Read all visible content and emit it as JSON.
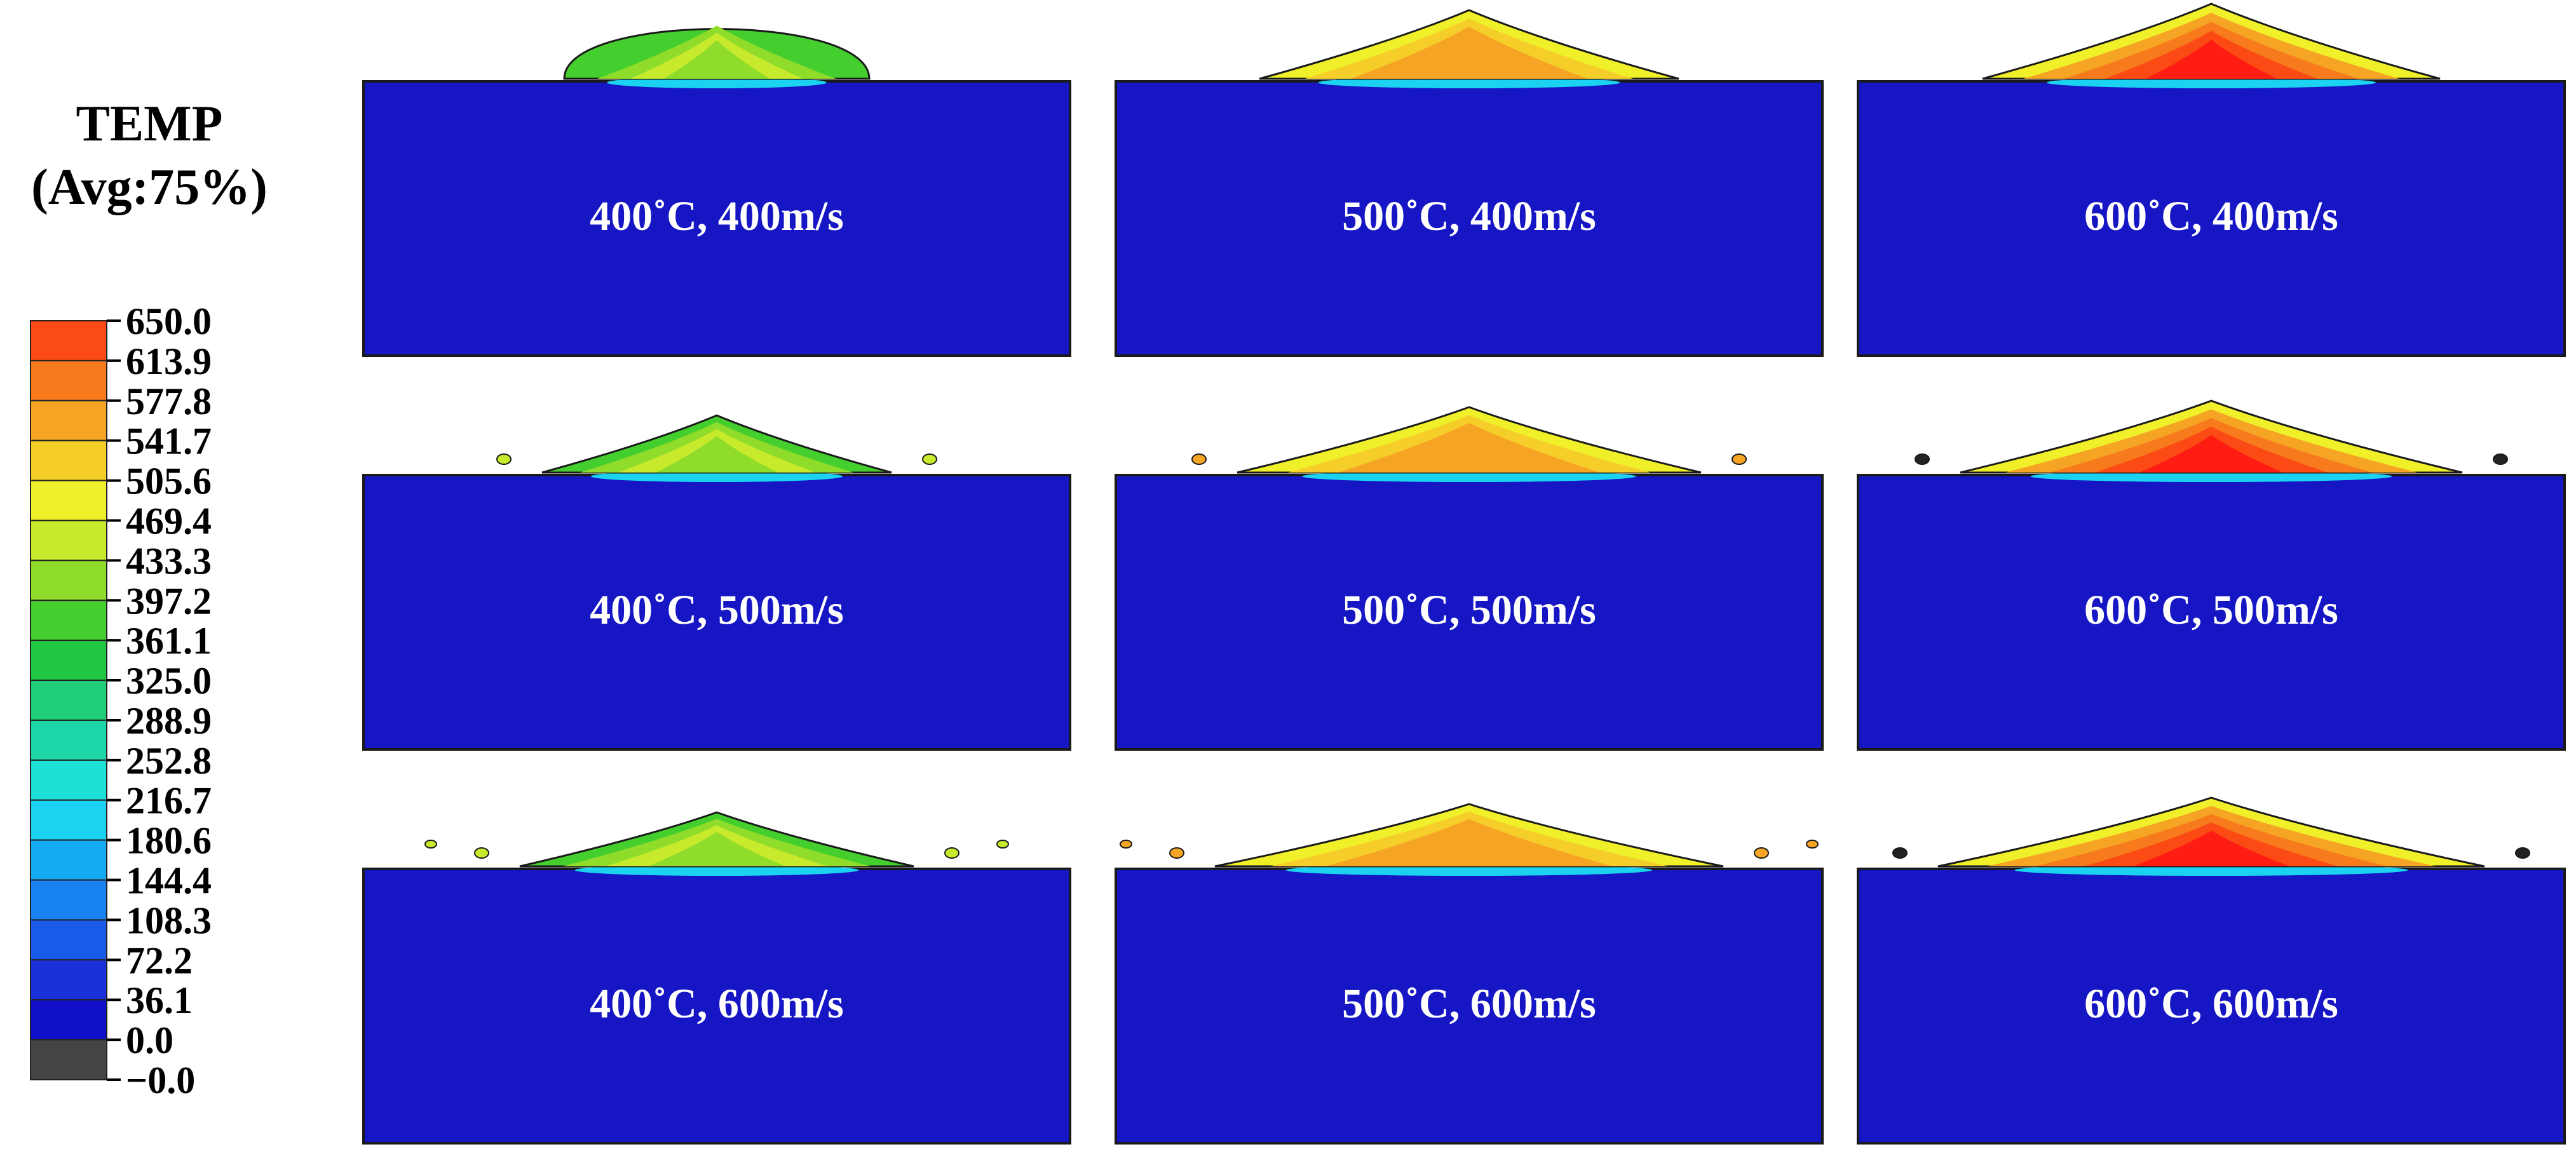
{
  "legend": {
    "title_line1": "TEMP",
    "title_line2": "(Avg:75%)",
    "levels": [
      {
        "label": "650.0",
        "color": "#ff1c12"
      },
      {
        "label": "613.9",
        "color": "#fb4a14"
      },
      {
        "label": "577.8",
        "color": "#f77a1c"
      },
      {
        "label": "541.7",
        "color": "#f5a423"
      },
      {
        "label": "505.6",
        "color": "#f6ce2a"
      },
      {
        "label": "469.4",
        "color": "#f0f02a"
      },
      {
        "label": "433.3",
        "color": "#c8ea2c"
      },
      {
        "label": "397.2",
        "color": "#8fdc2a"
      },
      {
        "label": "361.1",
        "color": "#45cf2e"
      },
      {
        "label": "325.0",
        "color": "#22c843"
      },
      {
        "label": "288.9",
        "color": "#1fce76"
      },
      {
        "label": "252.8",
        "color": "#1ed7a8"
      },
      {
        "label": "216.7",
        "color": "#1de0d6"
      },
      {
        "label": "180.6",
        "color": "#1bd3f0"
      },
      {
        "label": "144.4",
        "color": "#16aaf2"
      },
      {
        "label": "108.3",
        "color": "#1882f0"
      },
      {
        "label": "72.2",
        "color": "#1a5bea"
      },
      {
        "label": "36.1",
        "color": "#1a30d9"
      },
      {
        "label": "0.0",
        "color": "#1010c8"
      },
      {
        "label": "−0.0",
        "color": "#444444"
      }
    ]
  },
  "panels": [
    {
      "label": "400˚C,  400m/s",
      "temp": 400,
      "velocity": 400
    },
    {
      "label": "500˚C,  400m/s",
      "temp": 500,
      "velocity": 400
    },
    {
      "label": "600˚C,  400m/s",
      "temp": 600,
      "velocity": 400
    },
    {
      "label": "400˚C,  500m/s",
      "temp": 400,
      "velocity": 500
    },
    {
      "label": "500˚C,  500m/s",
      "temp": 500,
      "velocity": 500
    },
    {
      "label": "600˚C,  500m/s",
      "temp": 600,
      "velocity": 500
    },
    {
      "label": "400˚C,  600m/s",
      "temp": 400,
      "velocity": 600
    },
    {
      "label": "500˚C,  600m/s",
      "temp": 500,
      "velocity": 600
    },
    {
      "label": "600˚C,  600m/s",
      "temp": 600,
      "velocity": 600
    }
  ],
  "colors": {
    "substrate": "#1616c4",
    "outline": "#1a1a1a"
  }
}
